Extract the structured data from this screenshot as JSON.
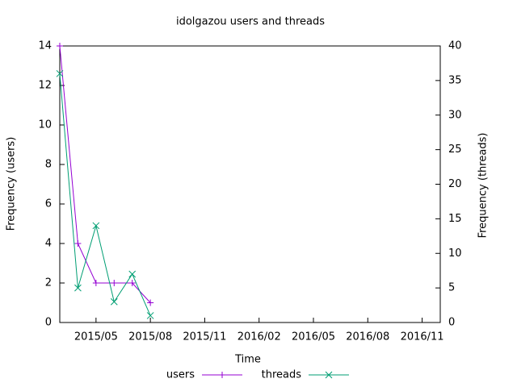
{
  "chart_data": {
    "type": "line",
    "title": "idolgazou users and threads",
    "xlabel": "Time",
    "ylabel": "Frequency (users)",
    "y2label": "Frequency (threads)",
    "x": [
      "2015/03",
      "2015/04",
      "2015/05",
      "2015/06",
      "2015/07",
      "2015/08"
    ],
    "xlim": [
      "2015/03",
      "2016/12"
    ],
    "xticks": [
      "2015/05",
      "2015/08",
      "2015/11",
      "2016/02",
      "2016/05",
      "2016/08",
      "2016/11"
    ],
    "ylim": [
      0,
      14
    ],
    "yticks": [
      0,
      2,
      4,
      6,
      8,
      10,
      12,
      14
    ],
    "y2lim": [
      0,
      40
    ],
    "y2ticks": [
      0,
      5,
      10,
      15,
      20,
      25,
      30,
      35,
      40
    ],
    "legend": "bottom",
    "series": [
      {
        "name": "users",
        "color": "#9400d3",
        "marker": "plus",
        "values": [
          14,
          4,
          2,
          2,
          2,
          1
        ]
      },
      {
        "name": "threads",
        "color": "#009e73",
        "marker": "cross",
        "axis": "y2",
        "values": [
          36,
          5,
          14,
          3,
          7,
          1
        ]
      }
    ]
  }
}
